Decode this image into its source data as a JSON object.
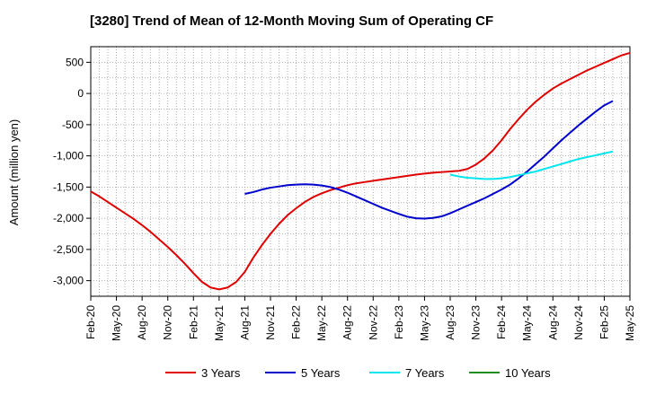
{
  "chart_data": {
    "type": "line",
    "title": "[3280]  Trend of Mean of 12-Month Moving Sum of Operating CF",
    "ylabel": "Amount (million yen)",
    "xlabel": "",
    "ylim": [
      -3250,
      750
    ],
    "yticks": [
      500,
      0,
      -500,
      -1000,
      -1500,
      -2000,
      -2500,
      -3000
    ],
    "ytick_labels": [
      "500",
      "0",
      "-500",
      "-1,000",
      "-1,500",
      "-2,000",
      "-2,500",
      "-3,000"
    ],
    "x_start": "Feb-20",
    "x_end": "May-25",
    "month_count": 63,
    "xtick_labels": [
      "Feb-20",
      "May-20",
      "Aug-20",
      "Nov-20",
      "Feb-21",
      "May-21",
      "Aug-21",
      "Nov-21",
      "Feb-22",
      "May-22",
      "Aug-22",
      "Nov-22",
      "Feb-23",
      "May-23",
      "Aug-23",
      "Nov-23",
      "Feb-24",
      "May-24",
      "Aug-24",
      "Nov-24",
      "Feb-25",
      "May-25"
    ],
    "grid": true,
    "legend_position": "bottom",
    "series": [
      {
        "name": "3 Years",
        "color": "#e00000",
        "start_month": 0,
        "values": [
          -1570,
          -1650,
          -1740,
          -1830,
          -1920,
          -2010,
          -2110,
          -2220,
          -2340,
          -2460,
          -2590,
          -2730,
          -2880,
          -3020,
          -3110,
          -3140,
          -3110,
          -3020,
          -2860,
          -2630,
          -2430,
          -2250,
          -2090,
          -1950,
          -1840,
          -1740,
          -1660,
          -1600,
          -1550,
          -1510,
          -1470,
          -1440,
          -1420,
          -1400,
          -1380,
          -1360,
          -1340,
          -1320,
          -1300,
          -1285,
          -1270,
          -1260,
          -1250,
          -1240,
          -1210,
          -1140,
          -1040,
          -910,
          -750,
          -570,
          -410,
          -260,
          -130,
          -20,
          80,
          160,
          230,
          300,
          370,
          430,
          490,
          550,
          610,
          650
        ]
      },
      {
        "name": "5 Years",
        "color": "#0000cc",
        "start_month": 18,
        "values": [
          -1610,
          -1580,
          -1540,
          -1510,
          -1490,
          -1470,
          -1460,
          -1455,
          -1460,
          -1475,
          -1500,
          -1540,
          -1590,
          -1650,
          -1710,
          -1770,
          -1830,
          -1880,
          -1930,
          -1975,
          -2000,
          -2005,
          -1995,
          -1970,
          -1920,
          -1860,
          -1800,
          -1740,
          -1680,
          -1610,
          -1540,
          -1460,
          -1360,
          -1250,
          -1130,
          -1010,
          -880,
          -750,
          -630,
          -510,
          -400,
          -290,
          -190,
          -120
        ]
      },
      {
        "name": "7 Years",
        "color": "#00e5ee",
        "start_month": 42,
        "values": [
          -1300,
          -1330,
          -1350,
          -1360,
          -1370,
          -1370,
          -1360,
          -1340,
          -1310,
          -1280,
          -1250,
          -1210,
          -1170,
          -1130,
          -1090,
          -1050,
          -1020,
          -990,
          -960,
          -930
        ]
      },
      {
        "name": "10 Years",
        "color": "#228b22",
        "start_month": 0,
        "values": []
      }
    ]
  }
}
